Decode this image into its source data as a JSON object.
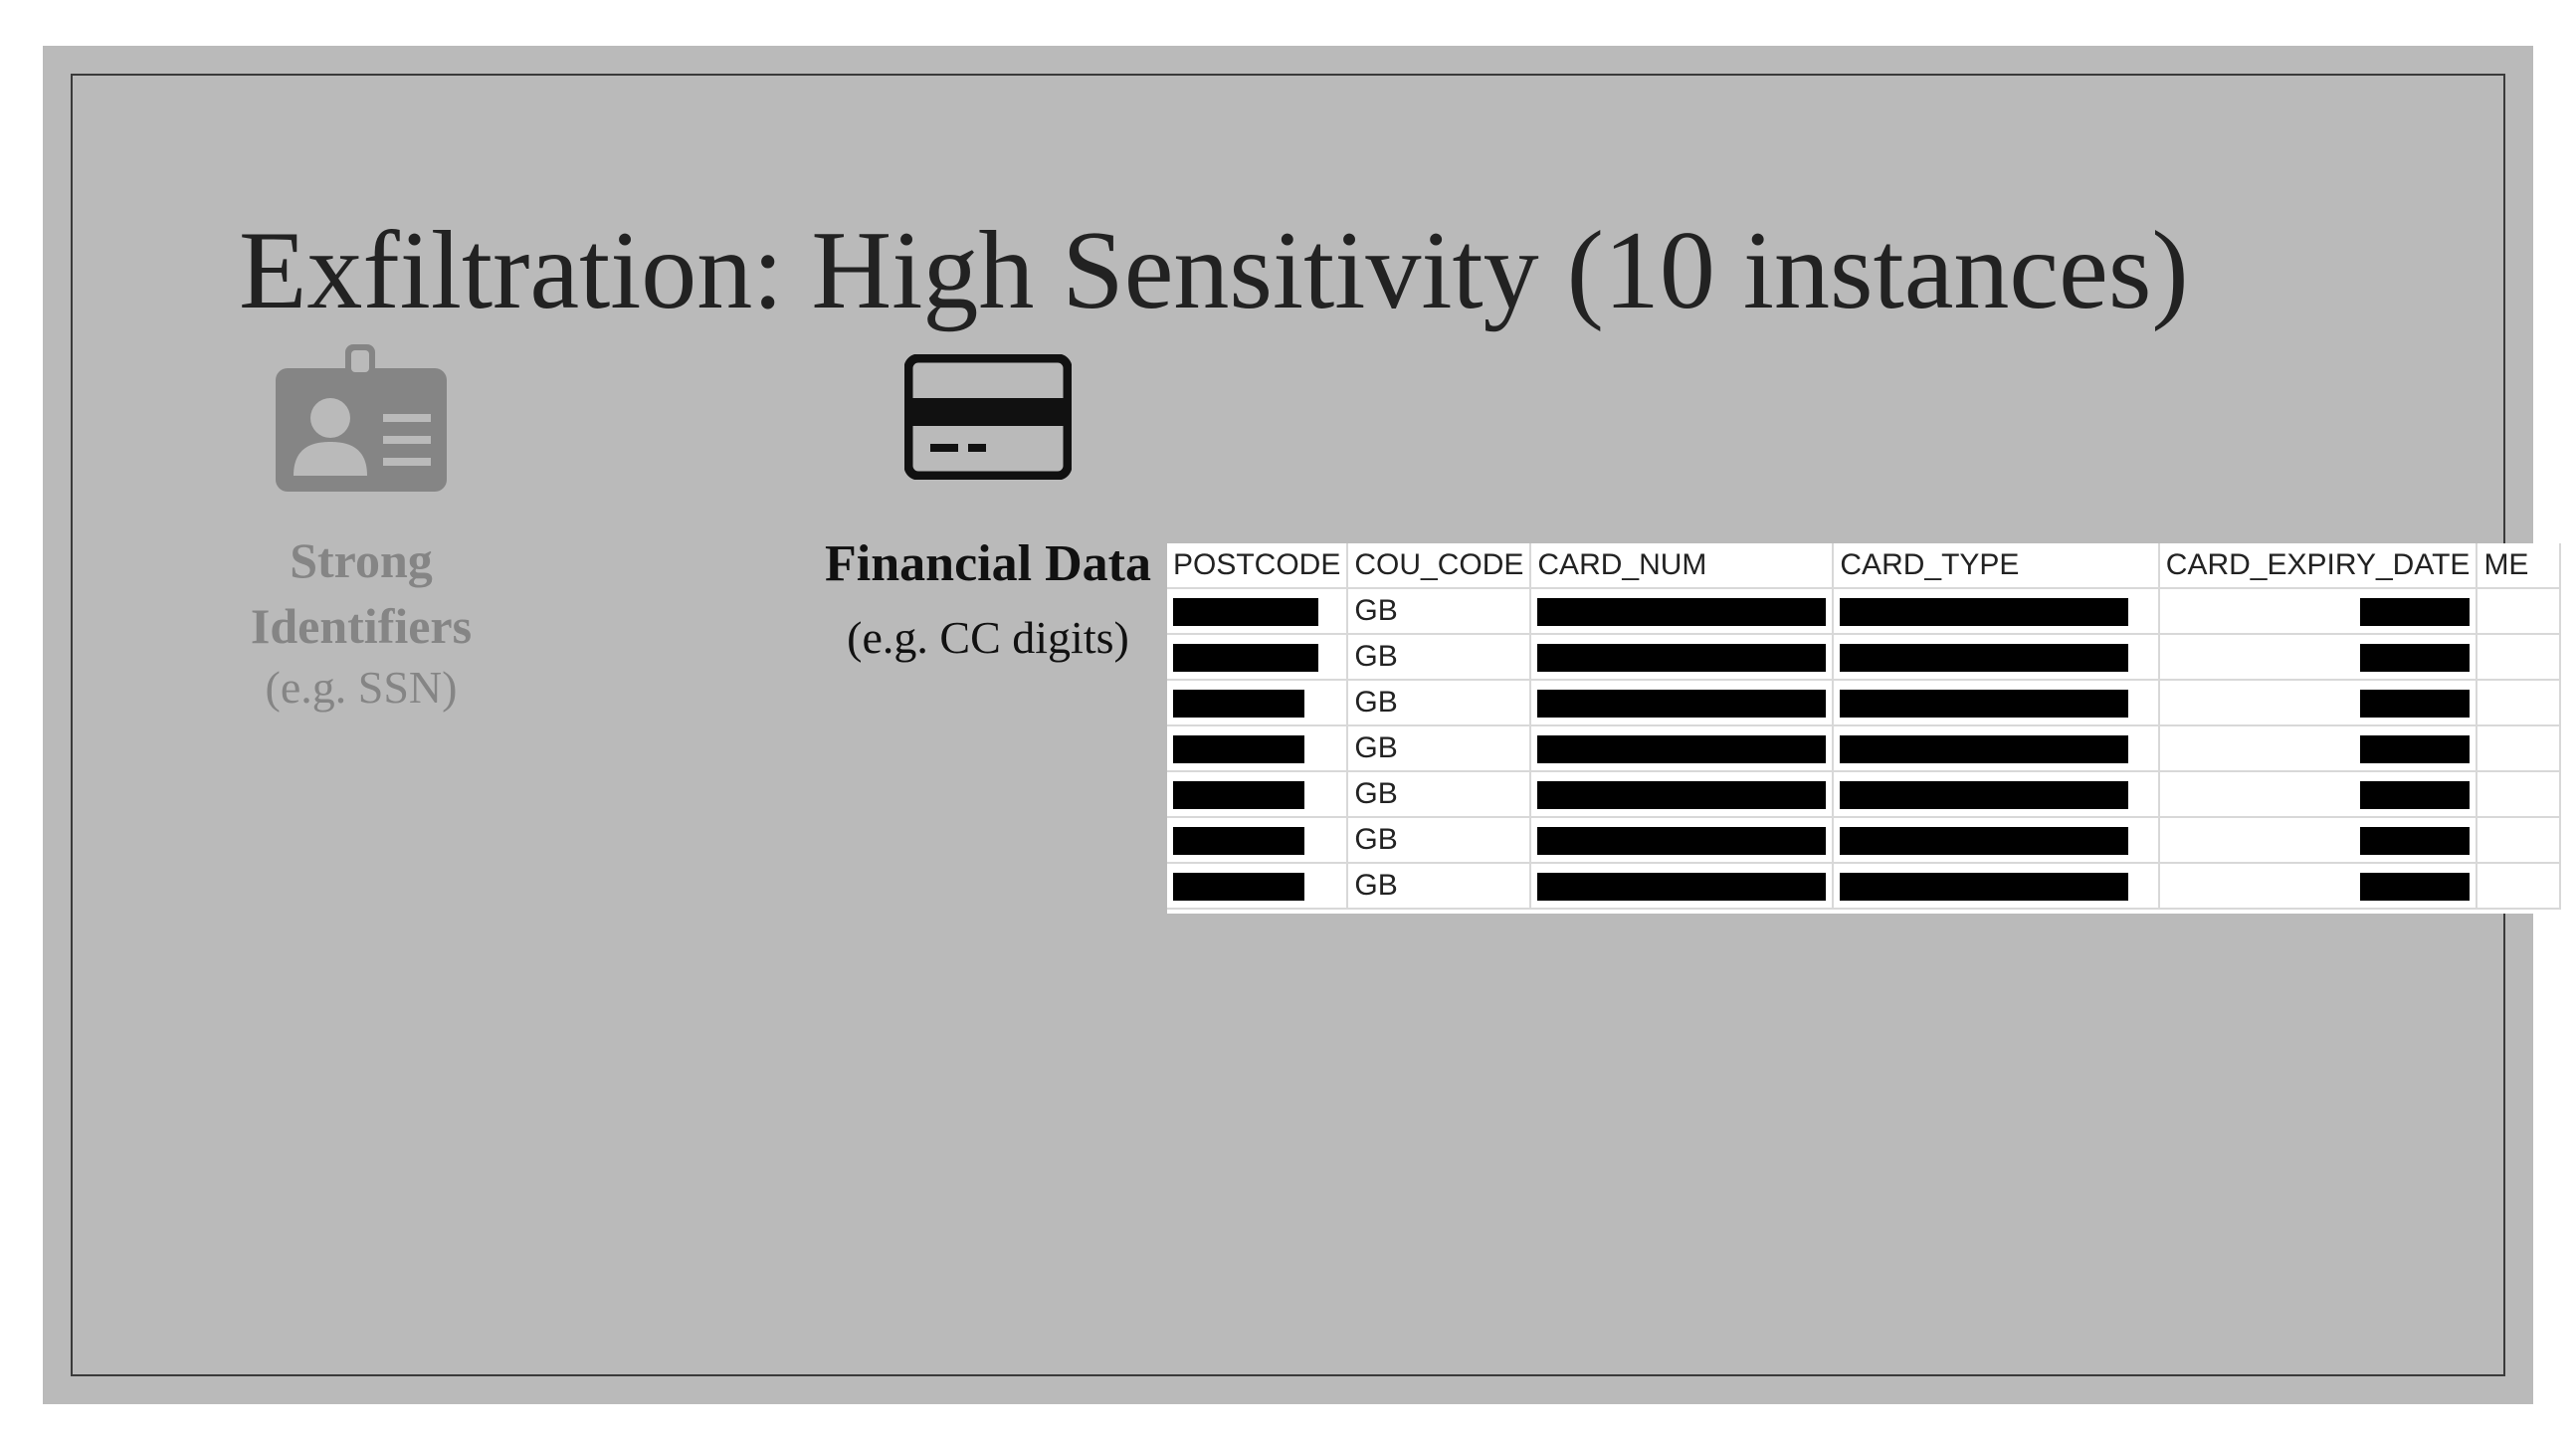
{
  "slide": {
    "title": "Exfiltration: High Sensitivity (10 instances)"
  },
  "strong_identifiers": {
    "icon": "id-badge-icon",
    "heading_line1": "Strong",
    "heading_line2": "Identifiers",
    "example": "(e.g. SSN)",
    "color": "#858585"
  },
  "financial_data": {
    "icon": "credit-card-icon",
    "heading": "Financial Data",
    "example": "(e.g. CC digits)",
    "color": "#111111"
  },
  "table": {
    "columns": [
      "POSTCODE",
      "COU_CODE",
      "CARD_NUM",
      "CARD_TYPE",
      "CARD_EXPIRY_DATE",
      "ME"
    ],
    "rows": [
      {
        "cou_code": "GB"
      },
      {
        "cou_code": "GB"
      },
      {
        "cou_code": "GB"
      },
      {
        "cou_code": "GB"
      },
      {
        "cou_code": "GB"
      },
      {
        "cou_code": "GB"
      },
      {
        "cou_code": "GB"
      }
    ],
    "redaction_color": "#000000"
  }
}
